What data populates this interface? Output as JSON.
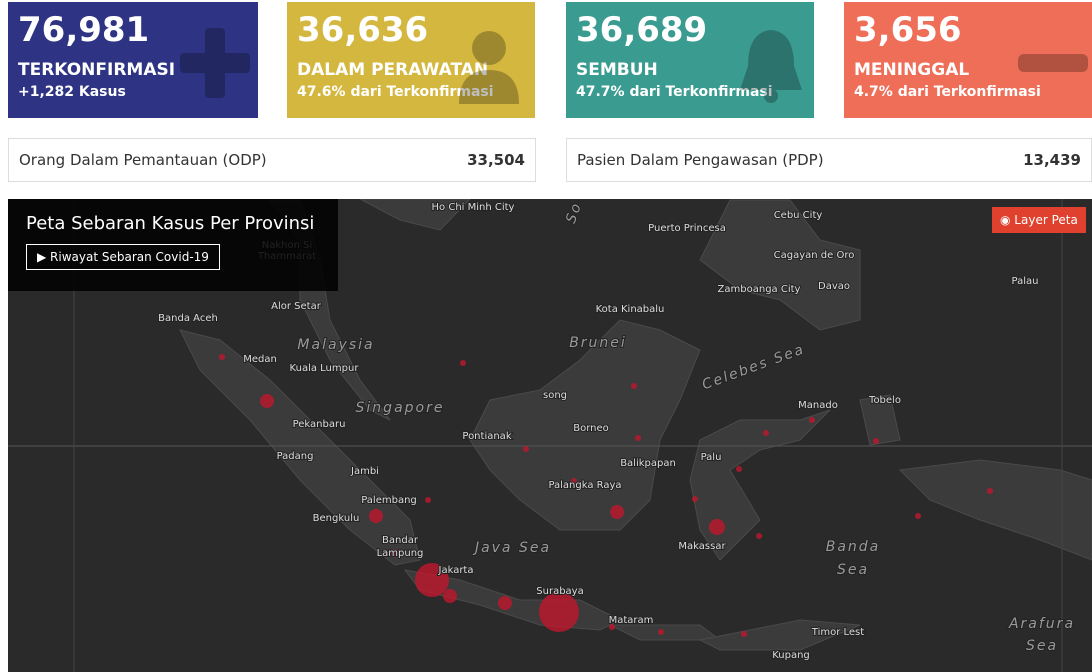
{
  "cards": [
    {
      "value": "76,981",
      "label": "TERKONFIRMASI",
      "sub": "+1,282 Kasus"
    },
    {
      "value": "36,636",
      "label": "DALAM PERAWATAN",
      "sub": "47.6% dari Terkonfirmasi"
    },
    {
      "value": "36,689",
      "label": "SEMBUH",
      "sub": "47.7% dari Terkonfirmasi"
    },
    {
      "value": "3,656",
      "label": "MENINGGAL",
      "sub": "4.7% dari Terkonfirmasi"
    }
  ],
  "stats": [
    {
      "label": "Orang Dalam Pemantauan (ODP)",
      "value": "33,504"
    },
    {
      "label": "Pasien Dalam Pengawasan (PDP)",
      "value": "13,439"
    }
  ],
  "map": {
    "title": "Peta Sebaran Kasus Per Provinsi",
    "button": "Riwayat Sebaran Covid-19",
    "layer_button": "Layer Peta",
    "places": [
      "Ho Chi Minh City",
      "Nakhon Si",
      "Thammarat",
      "Cebu City",
      "Puerto Princesa",
      "Cagayan de Oro",
      "Zamboanga City",
      "Davao",
      "Palau",
      "Banda Aceh",
      "Alor Setar",
      "Kota Kinabalu",
      "Malaysia",
      "Brunei",
      "Medan",
      "Kuala Lumpur",
      "Celebes Sea",
      "Singapore",
      "song",
      "Manado",
      "Tobelo",
      "Pekanbaru",
      "Pontianak",
      "Borneo",
      "Padang",
      "Jambi",
      "Balikpapan",
      "Palu",
      "Palangka Raya",
      "Palembang",
      "Bengkulu",
      "Bandar",
      "Lampung",
      "Java Sea",
      "Banda",
      "Sea",
      "Makassar",
      "Jakarta",
      "Surabaya",
      "Mataram",
      "Timor Lest",
      "Arafura",
      "Sea",
      "Kupang",
      "So"
    ]
  }
}
